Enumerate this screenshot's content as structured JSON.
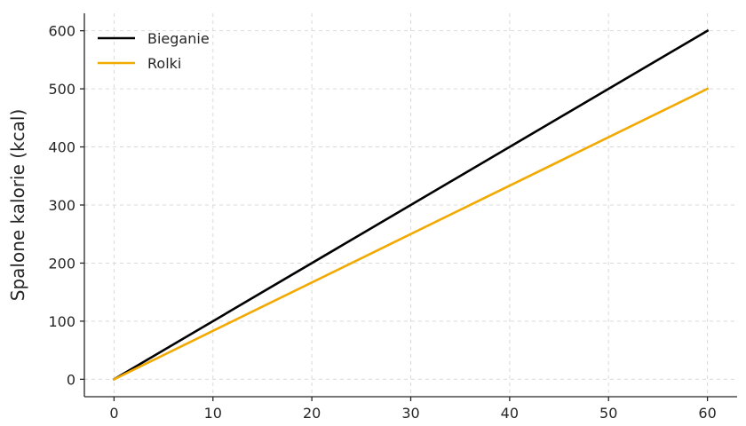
{
  "chart_data": {
    "type": "line",
    "title": "",
    "xlabel": "",
    "ylabel": "Spalone kalorie (kcal)",
    "xlim": [
      -3,
      63
    ],
    "ylim": [
      -30,
      630
    ],
    "xticks": [
      0,
      10,
      20,
      30,
      40,
      50,
      60
    ],
    "yticks": [
      0,
      100,
      200,
      300,
      400,
      500,
      600
    ],
    "grid": true,
    "legend_position": "upper-left",
    "series": [
      {
        "name": "Bieganie",
        "color": "#000000",
        "x": [
          0,
          60
        ],
        "y": [
          0,
          600
        ]
      },
      {
        "name": "Rolki",
        "color": "#f2a900",
        "x": [
          0,
          60
        ],
        "y": [
          0,
          500
        ]
      }
    ]
  }
}
